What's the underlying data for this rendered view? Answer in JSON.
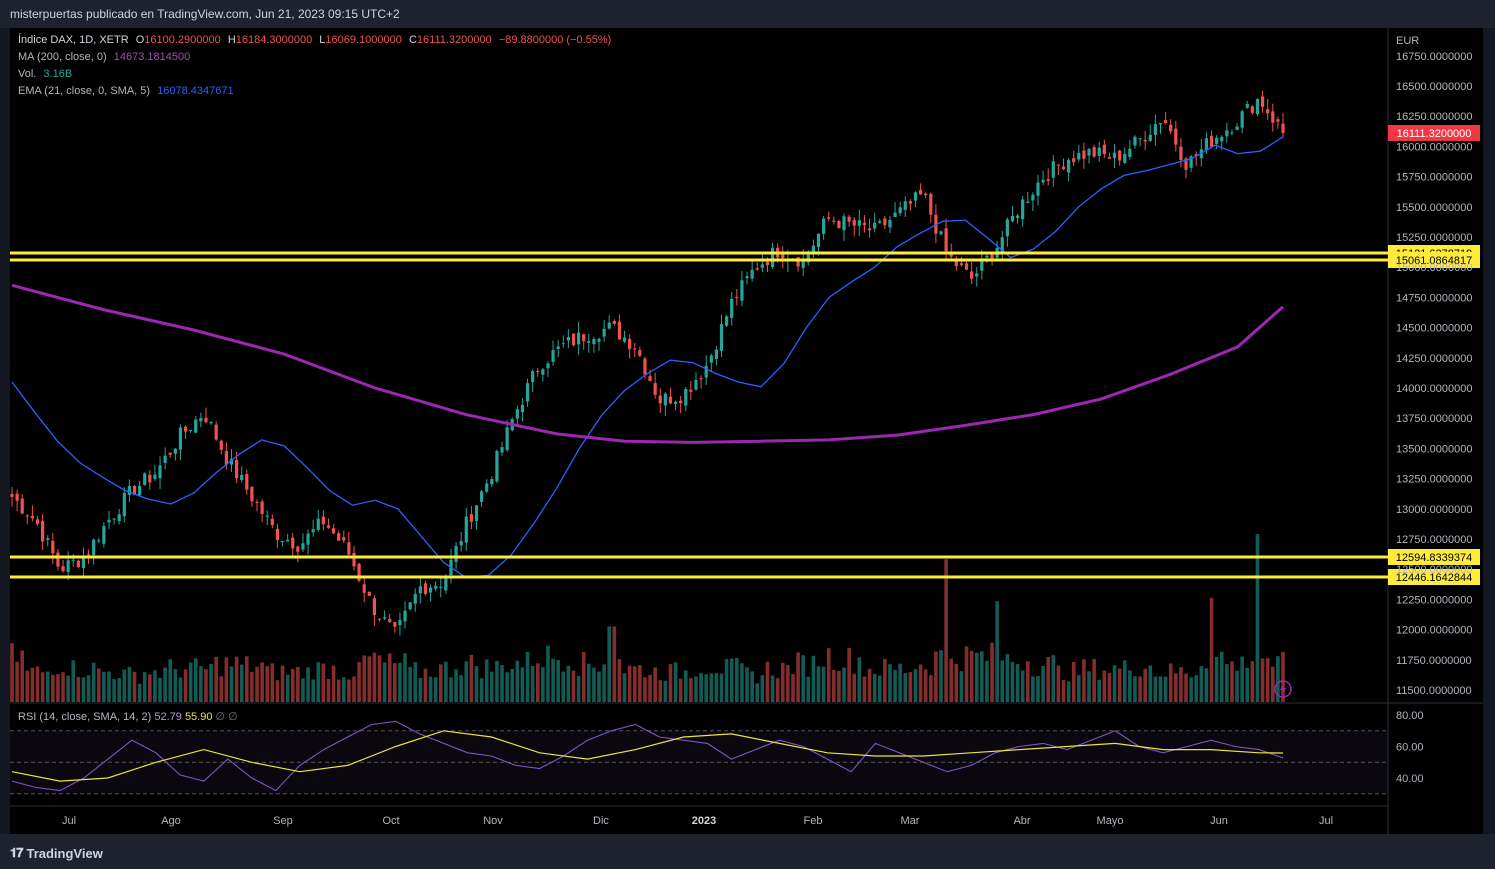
{
  "header": {
    "publish_text": "misterpuertas publicado en TradingView.com, Jun 21, 2023 09:15 UTC+2"
  },
  "legend": {
    "symbol": "Índice DAX, 1D, XETR",
    "o_label": "O",
    "o_value": "16100.2900000",
    "h_label": "H",
    "h_value": "16184.3000000",
    "l_label": "L",
    "l_value": "16069.1000000",
    "c_label": "C",
    "c_value": "16111.3200000",
    "change": "−89.8800000 (−0.55%)",
    "ma_label": "MA (200, close, 0)",
    "ma_value": "14673.1814500",
    "vol_label": "Vol.",
    "vol_value": "3.16B",
    "ema_label": "EMA (21, close, 0, SMA, 5)",
    "ema_value": "16078.4347671"
  },
  "rsi_legend": {
    "label": "RSI (14, close, SMA, 14, 2)",
    "rsi_value": "52.79",
    "sma_value": "55.90",
    "extra": "∅ ∅"
  },
  "footer": {
    "brand": "TradingView"
  },
  "colors": {
    "background": "#000000",
    "up": "#26a69a",
    "down": "#ef5350",
    "ma200": "#9c27b0",
    "ema21": "#2962ff",
    "level_lines": "#ffeb3b",
    "rsi": "#7e57c2",
    "rsi_ma": "#e6e63c",
    "last_price": "#f23645"
  },
  "chart_data": {
    "type": "candlestick",
    "currency": "EUR",
    "y_ticks": [
      "16750.0000000",
      "16500.0000000",
      "16250.0000000",
      "16000.0000000",
      "15750.0000000",
      "15500.0000000",
      "15250.0000000",
      "15000.0000000",
      "14750.0000000",
      "14500.0000000",
      "14250.0000000",
      "14000.0000000",
      "13750.0000000",
      "13500.0000000",
      "13250.0000000",
      "13000.0000000",
      "12750.0000000",
      "12500.0000000",
      "12250.0000000",
      "12000.0000000",
      "11750.0000000",
      "11500.0000000"
    ],
    "x_ticks": [
      "Jul",
      "Ago",
      "Sep",
      "Oct",
      "Nov",
      "Dic",
      "2023",
      "Feb",
      "Mar",
      "Abr",
      "Mayo",
      "Jun",
      "Jul"
    ],
    "last_price_label": "16111.3200000",
    "horizontal_levels": [
      {
        "value": 15121.6378719,
        "label": "15121.6378719"
      },
      {
        "value": 15061.0864817,
        "label": "15061.0864817"
      },
      {
        "value": 12594.8339374,
        "label": "12594.8339374"
      },
      {
        "value": 12446.1642844,
        "label": "12446.1642844"
      }
    ],
    "ema21_path": [
      [
        0,
        14050
      ],
      [
        1,
        13800
      ],
      [
        2,
        13560
      ],
      [
        3,
        13380
      ],
      [
        4,
        13260
      ],
      [
        5,
        13150
      ],
      [
        6,
        13080
      ],
      [
        7,
        13040
      ],
      [
        8,
        13130
      ],
      [
        9,
        13300
      ],
      [
        10,
        13450
      ],
      [
        11,
        13570
      ],
      [
        12,
        13520
      ],
      [
        13,
        13340
      ],
      [
        14,
        13150
      ],
      [
        15,
        13030
      ],
      [
        16,
        13070
      ],
      [
        17,
        13000
      ],
      [
        18,
        12780
      ],
      [
        19,
        12560
      ],
      [
        20,
        12430
      ],
      [
        21,
        12450
      ],
      [
        22,
        12620
      ],
      [
        23,
        12880
      ],
      [
        24,
        13170
      ],
      [
        25,
        13500
      ],
      [
        26,
        13780
      ],
      [
        27,
        13980
      ],
      [
        28,
        14120
      ],
      [
        29,
        14230
      ],
      [
        30,
        14210
      ],
      [
        31,
        14120
      ],
      [
        32,
        14050
      ],
      [
        33,
        14010
      ],
      [
        34,
        14200
      ],
      [
        35,
        14500
      ],
      [
        36,
        14750
      ],
      [
        37,
        14880
      ],
      [
        38,
        15000
      ],
      [
        39,
        15170
      ],
      [
        40,
        15280
      ],
      [
        41,
        15380
      ],
      [
        42,
        15390
      ],
      [
        43,
        15240
      ],
      [
        44,
        15080
      ],
      [
        45,
        15150
      ],
      [
        46,
        15300
      ],
      [
        47,
        15500
      ],
      [
        48,
        15650
      ],
      [
        49,
        15760
      ],
      [
        50,
        15800
      ],
      [
        51,
        15850
      ],
      [
        52,
        15900
      ],
      [
        53,
        16010
      ],
      [
        54,
        15940
      ],
      [
        55,
        15960
      ],
      [
        56,
        16078
      ]
    ],
    "ma200_path": [
      [
        0,
        14850
      ],
      [
        4,
        14650
      ],
      [
        8,
        14480
      ],
      [
        12,
        14280
      ],
      [
        16,
        14000
      ],
      [
        20,
        13780
      ],
      [
        24,
        13620
      ],
      [
        27,
        13560
      ],
      [
        30,
        13550
      ],
      [
        33,
        13560
      ],
      [
        36,
        13570
      ],
      [
        39,
        13610
      ],
      [
        42,
        13690
      ],
      [
        45,
        13780
      ],
      [
        48,
        13910
      ],
      [
        51,
        14110
      ],
      [
        54,
        14340
      ],
      [
        56,
        14673
      ]
    ],
    "candles_note": "Daily candles Jun 2022 – Jun 2023 generated from anchor closes below",
    "anchor_closes": [
      13100,
      12900,
      12500,
      12600,
      12900,
      13150,
      13300,
      13600,
      13800,
      13400,
      13100,
      12800,
      12700,
      12900,
      12650,
      12200,
      11950,
      12350,
      12400,
      12900,
      13300,
      13800,
      14200,
      14350,
      14450,
      14500,
      14350,
      13900,
      13950,
      14200,
      14700,
      15000,
      15150,
      15050,
      15400,
      15350,
      15300,
      15450,
      15600,
      15100,
      14900,
      15150,
      15500,
      15750,
      15900,
      15950,
      15900,
      16050,
      16250,
      15850,
      16050,
      16200,
      16400,
      16111
    ],
    "volumes_note": "Relative volume bars; spikes near Feb 28, Mar 17, Jun 2 and Jun 16",
    "volumes": [
      0.35,
      0.2,
      0.25,
      0.22,
      0.2,
      0.18,
      0.2,
      0.22,
      0.22,
      0.25,
      0.24,
      0.2,
      0.2,
      0.22,
      0.2,
      0.28,
      0.25,
      0.2,
      0.22,
      0.25,
      0.23,
      0.26,
      0.3,
      0.32,
      0.25,
      0.45,
      0.22,
      0.2,
      0.2,
      0.24,
      0.22,
      0.18,
      0.22,
      0.25,
      0.3,
      0.28,
      0.22,
      0.22,
      0.25,
      0.85,
      0.3,
      0.6,
      0.28,
      0.25,
      0.2,
      0.22,
      0.22,
      0.24,
      0.2,
      0.2,
      0.62,
      0.25,
      1.0,
      0.25
    ],
    "rsi": {
      "y_ticks": [
        "80.00",
        "60.00",
        "40.00"
      ],
      "upper_band": 70,
      "lower_band": 30,
      "rsi_path": [
        [
          0,
          38
        ],
        [
          1,
          34
        ],
        [
          2,
          32
        ],
        [
          3,
          40
        ],
        [
          4,
          52
        ],
        [
          5,
          64
        ],
        [
          6,
          56
        ],
        [
          7,
          42
        ],
        [
          8,
          38
        ],
        [
          9,
          52
        ],
        [
          10,
          40
        ],
        [
          11,
          32
        ],
        [
          12,
          48
        ],
        [
          13,
          58
        ],
        [
          14,
          66
        ],
        [
          15,
          74
        ],
        [
          16,
          76
        ],
        [
          17,
          68
        ],
        [
          18,
          62
        ],
        [
          19,
          56
        ],
        [
          20,
          54
        ],
        [
          21,
          48
        ],
        [
          22,
          46
        ],
        [
          23,
          54
        ],
        [
          24,
          64
        ],
        [
          25,
          70
        ],
        [
          26,
          74
        ],
        [
          27,
          66
        ],
        [
          28,
          64
        ],
        [
          29,
          62
        ],
        [
          30,
          52
        ],
        [
          31,
          58
        ],
        [
          32,
          64
        ],
        [
          33,
          60
        ],
        [
          34,
          52
        ],
        [
          35,
          44
        ],
        [
          36,
          62
        ],
        [
          37,
          56
        ],
        [
          38,
          50
        ],
        [
          39,
          44
        ],
        [
          40,
          48
        ],
        [
          41,
          56
        ],
        [
          42,
          60
        ],
        [
          43,
          62
        ],
        [
          44,
          58
        ],
        [
          45,
          64
        ],
        [
          46,
          70
        ],
        [
          47,
          60
        ],
        [
          48,
          56
        ],
        [
          49,
          60
        ],
        [
          50,
          64
        ],
        [
          51,
          60
        ],
        [
          52,
          58
        ],
        [
          53,
          52.79
        ]
      ],
      "rsi_ma_path": [
        [
          0,
          44
        ],
        [
          2,
          38
        ],
        [
          4,
          40
        ],
        [
          6,
          50
        ],
        [
          8,
          58
        ],
        [
          10,
          50
        ],
        [
          12,
          44
        ],
        [
          14,
          48
        ],
        [
          16,
          60
        ],
        [
          18,
          70
        ],
        [
          20,
          66
        ],
        [
          22,
          56
        ],
        [
          24,
          52
        ],
        [
          26,
          58
        ],
        [
          28,
          66
        ],
        [
          30,
          68
        ],
        [
          32,
          62
        ],
        [
          34,
          56
        ],
        [
          36,
          54
        ],
        [
          38,
          54
        ],
        [
          40,
          56
        ],
        [
          42,
          58
        ],
        [
          44,
          60
        ],
        [
          46,
          62
        ],
        [
          48,
          58
        ],
        [
          50,
          58
        ],
        [
          52,
          56
        ],
        [
          53,
          55.9
        ]
      ]
    }
  }
}
